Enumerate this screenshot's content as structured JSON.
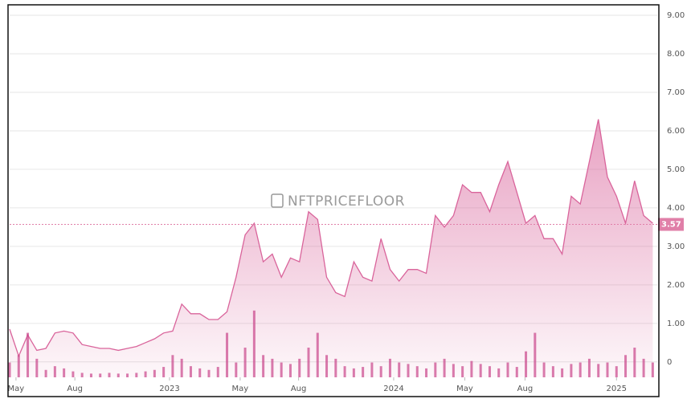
{
  "chart_data": {
    "type": "area",
    "watermark": "NFTPRICEFLOOR",
    "x": [
      0,
      2,
      4,
      6,
      8,
      10,
      12,
      14,
      16,
      18,
      20,
      22,
      24,
      26,
      28,
      30,
      32,
      34,
      36,
      38,
      40,
      42,
      44,
      46,
      48,
      50,
      52,
      54,
      56,
      58,
      60,
      62,
      64,
      66,
      68,
      70,
      72,
      74,
      76,
      78,
      80,
      82,
      84,
      86,
      88,
      90,
      92,
      94,
      96,
      98,
      100,
      102,
      104,
      106,
      108,
      110,
      112,
      114,
      116,
      118,
      120,
      122,
      124,
      126,
      128,
      130,
      132,
      134,
      136,
      138,
      140,
      142
    ],
    "xlim": [
      0,
      143
    ],
    "xticks": [
      {
        "value": 1.4,
        "label": "May"
      },
      {
        "value": 14.4,
        "label": "Aug"
      },
      {
        "value": 35.3,
        "label": "2023"
      },
      {
        "value": 50.9,
        "label": "May"
      },
      {
        "value": 63.8,
        "label": "Aug"
      },
      {
        "value": 84.8,
        "label": "2024"
      },
      {
        "value": 100.5,
        "label": "May"
      },
      {
        "value": 113.8,
        "label": "Aug"
      },
      {
        "value": 134,
        "label": "2025"
      }
    ],
    "ylim": [
      -0.4,
      9.23
    ],
    "yticks": [
      0,
      {
        "value": 1,
        "label": "1.00"
      },
      {
        "value": 2,
        "label": "2.00"
      },
      {
        "value": 3,
        "label": "3.00"
      },
      {
        "value": 4,
        "label": "4.00"
      },
      {
        "value": 5,
        "label": "5.00"
      },
      {
        "value": 6,
        "label": "6.00"
      },
      {
        "value": 7,
        "label": "7.00"
      },
      {
        "value": 8,
        "label": "8.00"
      },
      {
        "value": 9,
        "label": "9.00"
      }
    ],
    "y2lim": [
      0,
      500
    ],
    "grid": true,
    "current_value": 3.57,
    "current_color": "#e07fa8",
    "series": [
      {
        "color": "#d9649b",
        "values": [
          0.85,
          0.15,
          0.7,
          0.3,
          0.35,
          0.75,
          0.8,
          0.75,
          0.45,
          0.4,
          0.35,
          0.35,
          0.3,
          0.35,
          0.4,
          0.5,
          0.6,
          0.75,
          0.8,
          1.5,
          1.25,
          1.25,
          1.1,
          1.1,
          1.3,
          2.2,
          3.3,
          3.6,
          2.6,
          2.8,
          2.2,
          2.7,
          2.6,
          3.9,
          3.7,
          2.2,
          1.8,
          1.7,
          2.6,
          2.2,
          2.1,
          3.2,
          2.4,
          2.1,
          2.4,
          2.4,
          2.3,
          3.8,
          3.5,
          3.8,
          4.6,
          4.4,
          4.4,
          3.9,
          4.6,
          5.2,
          4.4,
          3.6,
          3.8,
          3.2,
          3.2,
          2.8,
          4.3,
          4.1,
          5.2,
          6.3,
          4.8,
          4.3,
          3.6,
          4.7,
          3.8,
          3.6
        ]
      },
      {
        "type": "bar",
        "axis": "y2",
        "color": "#c9458a",
        "values": [
          20,
          30,
          60,
          25,
          10,
          15,
          12,
          8,
          6,
          5,
          5,
          6,
          5,
          5,
          6,
          8,
          10,
          14,
          30,
          25,
          15,
          12,
          10,
          14,
          60,
          20,
          40,
          90,
          30,
          25,
          20,
          18,
          25,
          40,
          60,
          30,
          25,
          15,
          12,
          14,
          20,
          15,
          25,
          20,
          18,
          15,
          12,
          20,
          25,
          18,
          15,
          22,
          18,
          15,
          12,
          20,
          14,
          35,
          60,
          20,
          15,
          12,
          18,
          20,
          25,
          18,
          20,
          15,
          30,
          40,
          25,
          20
        ]
      }
    ]
  }
}
